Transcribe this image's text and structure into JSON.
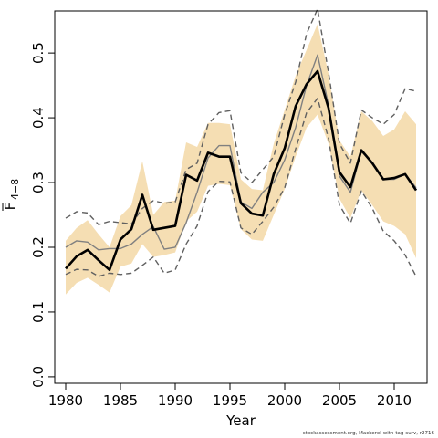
{
  "chart_data": {
    "type": "line",
    "xlabel": "Year",
    "ylabel": "F",
    "ylabel_subscript": "4−8",
    "xlim": [
      1979,
      2013
    ],
    "ylim": [
      -0.01,
      0.565
    ],
    "x_ticks": [
      1980,
      1985,
      1990,
      1995,
      2000,
      2005,
      2010
    ],
    "y_ticks": [
      0.0,
      0.1,
      0.2,
      0.3,
      0.4,
      0.5
    ],
    "x_tick_labels": [
      "1980",
      "1985",
      "1990",
      "1995",
      "2000",
      "2005",
      "2010"
    ],
    "y_tick_labels": [
      "0.0",
      "0.1",
      "0.2",
      "0.3",
      "0.4",
      "0.5"
    ],
    "x": [
      1980,
      1981,
      1982,
      1983,
      1984,
      1985,
      1986,
      1987,
      1988,
      1989,
      1990,
      1991,
      1992,
      1993,
      1994,
      1995,
      1996,
      1997,
      1998,
      1999,
      2000,
      2001,
      2002,
      2003,
      2004,
      2005,
      2006,
      2007,
      2008,
      2009,
      2010,
      2011,
      2012
    ],
    "band": {
      "color": "#f5deb3",
      "lower": [
        0.127,
        0.145,
        0.153,
        0.142,
        0.13,
        0.17,
        0.175,
        0.205,
        0.185,
        0.188,
        0.192,
        0.24,
        0.255,
        0.295,
        0.298,
        0.296,
        0.228,
        0.212,
        0.21,
        0.25,
        0.29,
        0.34,
        0.385,
        0.405,
        0.36,
        0.275,
        0.245,
        0.288,
        0.265,
        0.24,
        0.233,
        0.22,
        0.183
      ],
      "upper": [
        0.21,
        0.23,
        0.242,
        0.22,
        0.2,
        0.248,
        0.265,
        0.333,
        0.25,
        0.27,
        0.272,
        0.362,
        0.355,
        0.392,
        0.392,
        0.39,
        0.305,
        0.29,
        0.288,
        0.36,
        0.412,
        0.465,
        0.505,
        0.545,
        0.468,
        0.365,
        0.34,
        0.41,
        0.395,
        0.372,
        0.382,
        0.41,
        0.39
      ]
    },
    "series": [
      {
        "style": "gray-solid",
        "color": "#808080",
        "values": [
          0.2,
          0.21,
          0.208,
          0.196,
          0.198,
          0.198,
          0.205,
          0.22,
          0.232,
          0.197,
          0.2,
          0.238,
          0.285,
          0.338,
          0.357,
          0.357,
          0.27,
          0.26,
          0.285,
          0.3,
          0.335,
          0.385,
          0.45,
          0.497,
          0.42,
          0.31,
          0.285,
          0.348,
          0.33,
          0.305,
          0.305,
          0.313,
          0.292
        ]
      },
      {
        "style": "gray-dashed-upper",
        "color": "#606060",
        "values": [
          0.245,
          0.255,
          0.253,
          0.235,
          0.24,
          0.238,
          0.236,
          0.26,
          0.272,
          0.268,
          0.27,
          0.32,
          0.33,
          0.39,
          0.408,
          0.411,
          0.315,
          0.3,
          0.32,
          0.34,
          0.405,
          0.455,
          0.53,
          0.568,
          0.47,
          0.36,
          0.33,
          0.412,
          0.4,
          0.39,
          0.405,
          0.445,
          0.441
        ]
      },
      {
        "style": "gray-dashed-lower",
        "color": "#606060",
        "values": [
          0.158,
          0.166,
          0.165,
          0.155,
          0.16,
          0.158,
          0.16,
          0.172,
          0.185,
          0.16,
          0.165,
          0.205,
          0.233,
          0.286,
          0.302,
          0.301,
          0.23,
          0.22,
          0.24,
          0.262,
          0.292,
          0.352,
          0.408,
          0.43,
          0.368,
          0.265,
          0.237,
          0.287,
          0.26,
          0.225,
          0.21,
          0.188,
          0.155
        ]
      },
      {
        "style": "black-thick",
        "color": "#000000",
        "values": [
          0.167,
          0.186,
          0.196,
          0.18,
          0.165,
          0.212,
          0.228,
          0.281,
          0.227,
          0.23,
          0.233,
          0.312,
          0.303,
          0.346,
          0.34,
          0.34,
          0.268,
          0.252,
          0.249,
          0.313,
          0.353,
          0.418,
          0.452,
          0.472,
          0.415,
          0.316,
          0.293,
          0.35,
          0.33,
          0.305,
          0.307,
          0.313,
          0.288
        ]
      }
    ]
  },
  "credit": "stockassessment.org, Mackerel-with-tag-surv, r2716"
}
